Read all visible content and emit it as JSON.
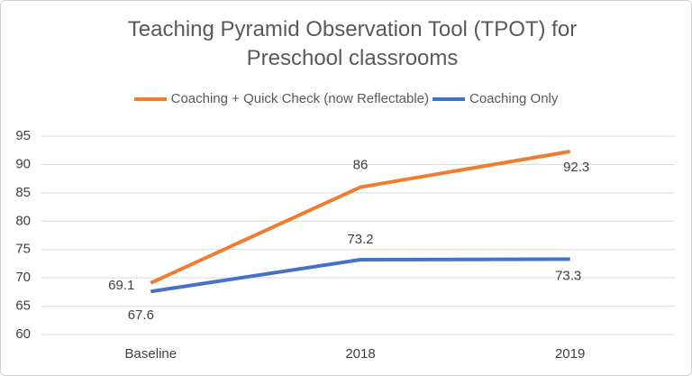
{
  "chart_data": {
    "type": "line",
    "title": "Teaching Pyramid Observation Tool (TPOT)  for Preschool classrooms",
    "categories": [
      "Baseline",
      "2018",
      "2019"
    ],
    "series": [
      {
        "name": "Coaching + Quick Check (now Reflectable)",
        "color": "#ed7d31",
        "values": [
          69.1,
          86,
          92.3
        ]
      },
      {
        "name": "Coaching Only",
        "color": "#4472c4",
        "values": [
          67.6,
          73.2,
          73.3
        ]
      }
    ],
    "ylim": [
      60,
      95
    ],
    "yticks": [
      60,
      65,
      70,
      75,
      80,
      85,
      90,
      95
    ],
    "grid": true,
    "legend": "top"
  }
}
